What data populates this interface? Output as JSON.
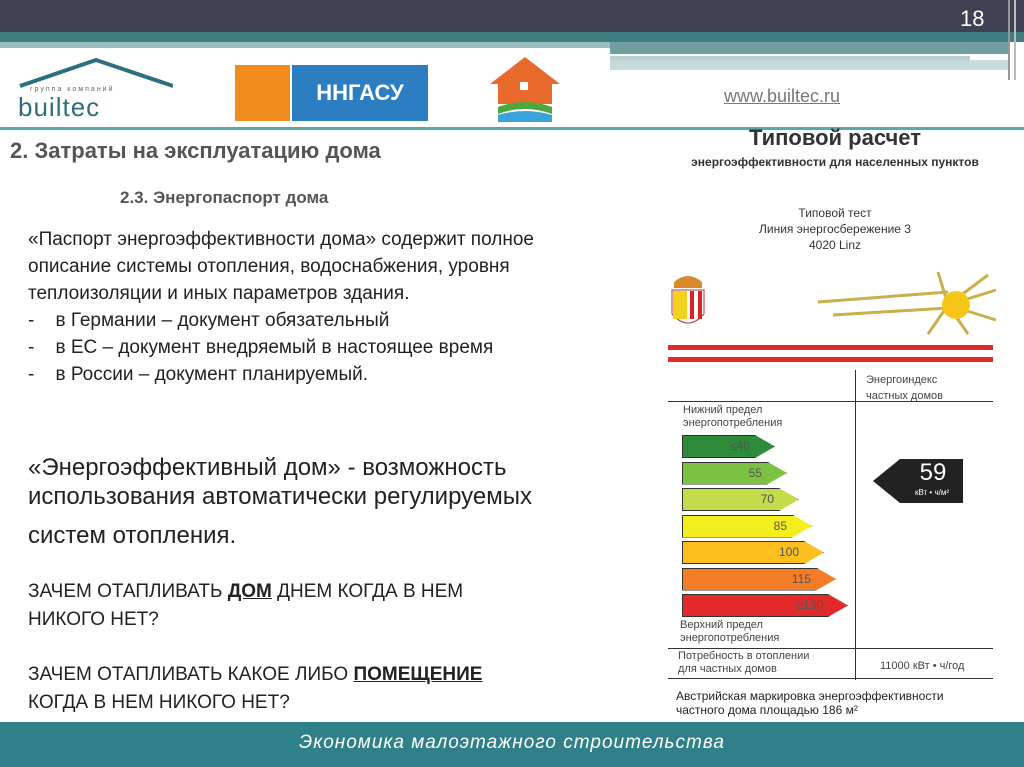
{
  "slide": {
    "page_number": "18",
    "url": "www.builtec.ru"
  },
  "logos": {
    "builtec_top": "группа компаний",
    "builtec": "builtec",
    "ngasu": "ННГАСУ"
  },
  "title": "2. Затраты на эксплуатацию дома",
  "subtitle": "2.3. Энергопаспорт дома",
  "body": [
    "«Паспорт энергоэффективности дома» содержит полное",
    "описание системы отопления, водоснабжения, уровня",
    "теплоизоляции и иных параметров здания.",
    "-    в Германии – документ обязательный",
    "-    в ЕС – документ внедряемый в настоящее время",
    "-    в России – документ планируемый."
  ],
  "big": [
    "«Энергоэффективный дом» - возможность",
    "использования автоматически регулируемых",
    "систем отопления."
  ],
  "q1": {
    "pre": "ЗАЧЕМ ОТАПЛИВАТЬ ",
    "bold": "ДОМ",
    "post": " ДНЕМ КОГДА В НЕМ",
    "line2": "НИКОГО НЕТ?"
  },
  "q2": {
    "pre": "ЗАЧЕМ ОТАПЛИВАТЬ КАКОЕ ЛИБО ",
    "bold": "ПОМЕЩЕНИЕ",
    "line2": "КОГДА В НЕМ НИКОГО НЕТ?"
  },
  "panel": {
    "title": "Типовой расчет",
    "subtitle": "энергоэффективности для населенных пунктов",
    "test": [
      "Типовой тест",
      "Линия энергосбережение 3",
      "4020 Linz"
    ],
    "index_header": [
      "Энергоиндекс",
      "частных домов"
    ],
    "lower_limit": [
      "Нижний предел",
      "энергопотребления"
    ],
    "upper_limit": [
      "Верхний предел",
      "энергопотребления"
    ],
    "bars": [
      {
        "label": "≤40",
        "color": "#2e8b3a"
      },
      {
        "label": "55",
        "color": "#7cc242"
      },
      {
        "label": "70",
        "color": "#c5dc4a"
      },
      {
        "label": "85",
        "color": "#f5ee1f"
      },
      {
        "label": "100",
        "color": "#fcbf1d"
      },
      {
        "label": "115",
        "color": "#f47c27"
      },
      {
        "label": "≥130",
        "color": "#e32a2a"
      }
    ],
    "index_value": "59",
    "index_unit": "кВт • ч/м²",
    "demand_label": [
      "Потребность в отоплении",
      "для частных домов"
    ],
    "demand_value": "11000 кВт • ч/год",
    "caption": [
      "Австрийская маркировка энергоэффективности",
      "частного дома площадью 186 м²"
    ]
  },
  "footer": "Экономика малоэтажного строительства"
}
